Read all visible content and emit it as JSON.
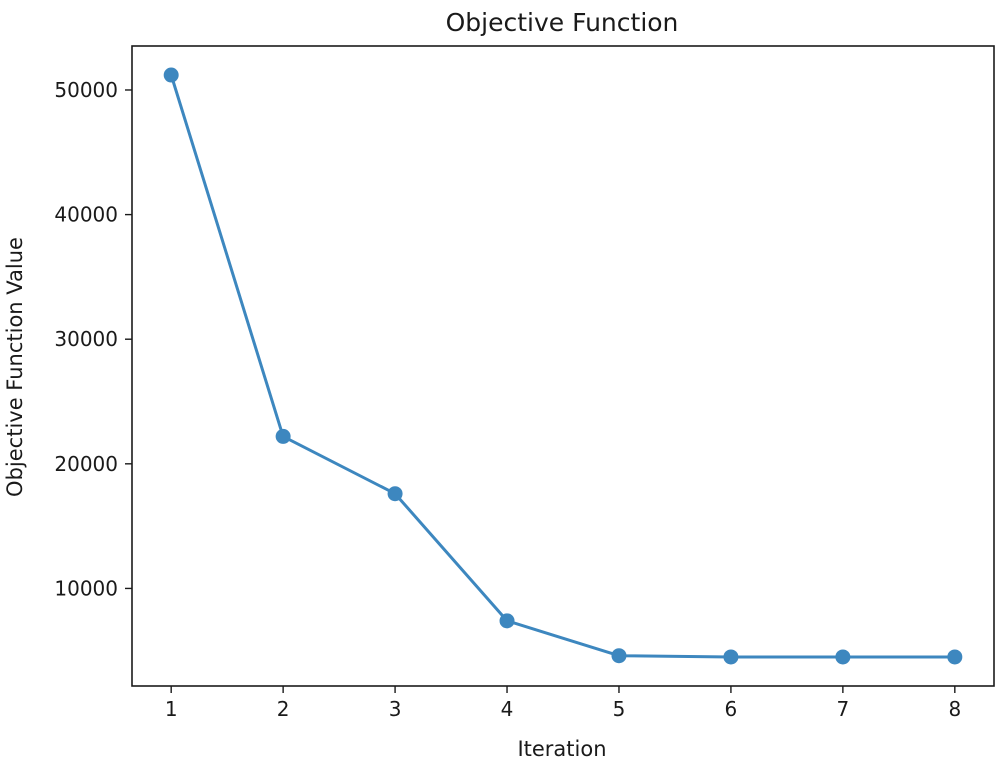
{
  "chart_data": {
    "type": "line",
    "title": "Objective Function",
    "xlabel": "Iteration",
    "ylabel": "Objective Function Value",
    "x": [
      1,
      2,
      3,
      4,
      5,
      6,
      7,
      8
    ],
    "series": [
      {
        "values": [
          51200,
          22200,
          17600,
          7400,
          4600,
          4500,
          4500,
          4500
        ],
        "color": "#3d87bf",
        "marker": "circle"
      }
    ],
    "xticks": [
      "1",
      "2",
      "3",
      "4",
      "5",
      "6",
      "7",
      "8"
    ],
    "yticks": [
      10000,
      20000,
      30000,
      40000,
      50000
    ],
    "ytick_labels": [
      "10000",
      "20000",
      "30000",
      "40000",
      "50000"
    ],
    "xlim": [
      0.65,
      8.35
    ],
    "ylim": [
      2170,
      53530
    ],
    "grid": false,
    "legend": false
  }
}
